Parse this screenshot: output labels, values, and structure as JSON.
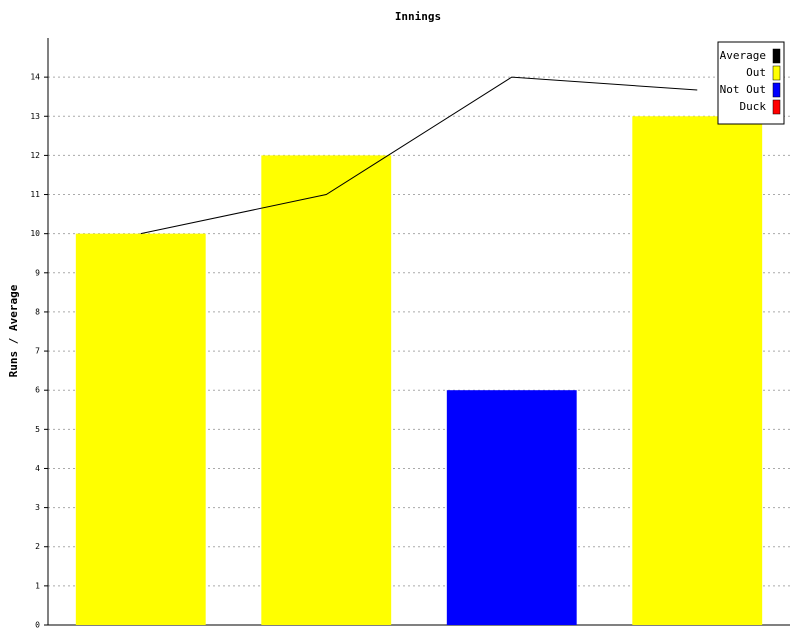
{
  "chart_data": {
    "type": "bar",
    "title": "Innings",
    "y_label": "Runs / Average",
    "categories": [
      null,
      null,
      null,
      null
    ],
    "series": [
      {
        "name": "Average",
        "color": "#000000",
        "type": "line",
        "values": [
          10,
          11,
          14,
          13.67
        ]
      },
      {
        "name": "Out",
        "color": "#ffff00",
        "values": [
          10,
          12,
          null,
          13
        ]
      },
      {
        "name": "Not Out",
        "color": "#0000ff",
        "values": [
          null,
          null,
          6,
          null
        ]
      },
      {
        "name": "Duck",
        "color": "#ff0000",
        "values": [
          null,
          null,
          null,
          null
        ]
      }
    ],
    "ylim": [
      0,
      15
    ],
    "yticks": [
      0,
      1,
      2,
      3,
      4,
      5,
      6,
      7,
      8,
      9,
      10,
      11,
      12,
      13,
      14
    ],
    "grid": true,
    "legend": "top-right"
  }
}
